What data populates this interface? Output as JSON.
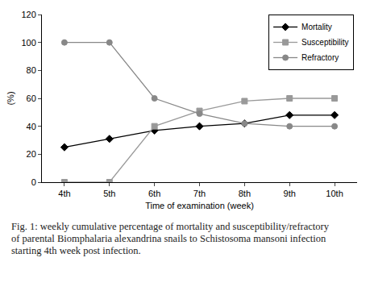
{
  "chart_data": {
    "type": "line",
    "caption": "Fig. 1: weekly cumulative percentage of mortality and susceptibility/refractory of parental Biomphalaria alexandrina snails to Schistosoma mansoni infection starting 4th week post infection.",
    "x_label": "Time of examination (week)",
    "y_label": "(%)",
    "categories": [
      "4th",
      "5th",
      "6th",
      "7th",
      "8th",
      "9th",
      "10th"
    ],
    "series": [
      {
        "name": "Mortality",
        "color": "#000000",
        "marker": "diamond",
        "values": [
          25,
          31,
          37,
          40,
          42,
          48,
          48
        ]
      },
      {
        "name": "Susceptibility",
        "color": "#999999",
        "marker": "square",
        "values": [
          0,
          0,
          40,
          51,
          58,
          60,
          60
        ]
      },
      {
        "name": "Refractory",
        "color": "#888888",
        "marker": "triangle-open",
        "values": [
          100,
          100,
          60,
          49,
          42,
          40,
          40
        ]
      }
    ],
    "ylim": [
      0,
      120
    ],
    "yticks": [
      0,
      20,
      40,
      60,
      80,
      100,
      120
    ],
    "grid": false,
    "legend": "top-right"
  }
}
